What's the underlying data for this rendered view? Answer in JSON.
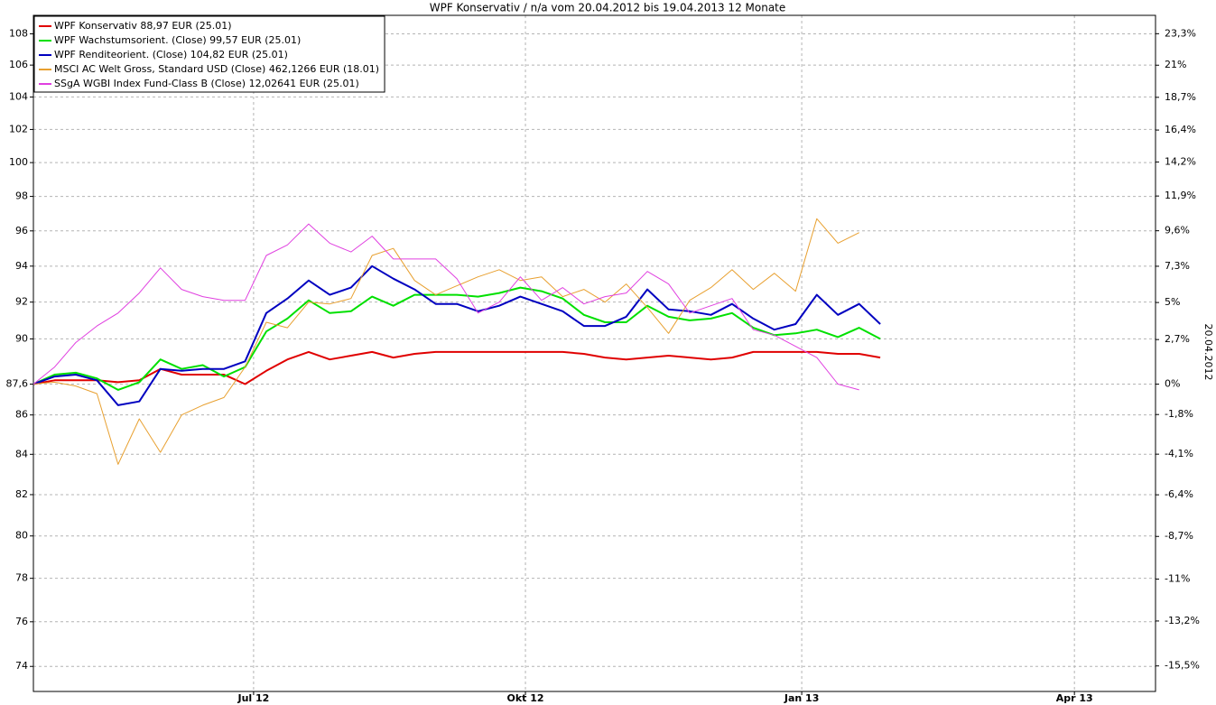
{
  "chart_data": {
    "type": "line",
    "title": "WPF Konservativ / n/a vom 20.04.2012 bis 19.04.2013 12 Monate",
    "y2label": "20.04.2012",
    "x": [
      0,
      1,
      2,
      3,
      4,
      5,
      6,
      7,
      8,
      9,
      10,
      11,
      12,
      13,
      14,
      15,
      16,
      17,
      18,
      19,
      20,
      21,
      22,
      23,
      24,
      25,
      26,
      27,
      28,
      29,
      30,
      31,
      32,
      33,
      34,
      35,
      36,
      37,
      38,
      39,
      40
    ],
    "xlim": [
      0,
      53.0
    ],
    "xticks": [
      {
        "value": 10.4,
        "label": "Jul 12"
      },
      {
        "value": 23.24,
        "label": "Okt 12"
      },
      {
        "value": 36.29,
        "label": "Jan 13"
      },
      {
        "value": 49.17,
        "label": "Apr 13"
      }
    ],
    "ylim": [
      72.9,
      109.2
    ],
    "yscale": "log",
    "yticks": [
      74,
      76,
      78,
      80,
      82,
      84,
      86,
      {
        "value": 87.6,
        "label": "87,6"
      },
      90,
      92,
      94,
      96,
      98,
      100,
      102,
      104,
      106,
      108
    ],
    "y2lim": [
      -16.78,
      24.66
    ],
    "y2scale": "log",
    "y2ticks": [
      {
        "value": 23.3,
        "label": "23,3%"
      },
      {
        "value": 21,
        "label": "21%"
      },
      {
        "value": 18.7,
        "label": "18,7%"
      },
      {
        "value": 16.4,
        "label": "16,4%"
      },
      {
        "value": 14.2,
        "label": "14,2%"
      },
      {
        "value": 11.9,
        "label": "11,9%"
      },
      {
        "value": 9.6,
        "label": "9,6%"
      },
      {
        "value": 7.3,
        "label": "7,3%"
      },
      {
        "value": 5,
        "label": "5%"
      },
      {
        "value": 2.7,
        "label": "2,7%"
      },
      {
        "value": 0,
        "label": "0%"
      },
      {
        "value": -1.8,
        "label": "-1,8%"
      },
      {
        "value": -4.1,
        "label": "-4,1%"
      },
      {
        "value": -6.4,
        "label": "-6,4%"
      },
      {
        "value": -8.7,
        "label": "-8,7%"
      },
      {
        "value": -11,
        "label": "-11%"
      },
      {
        "value": -13.2,
        "label": "-13,2%"
      },
      {
        "value": -15.5,
        "label": "-15,5%"
      }
    ],
    "grid": true,
    "legend": "upper left",
    "series": [
      {
        "name": "WPF Konservativ 88,97 EUR (25.01)",
        "color": "#e00000",
        "width": 2,
        "values": [
          87.6,
          87.8,
          87.8,
          87.8,
          87.7,
          87.8,
          88.4,
          88.1,
          88.1,
          88.1,
          87.6,
          88.3,
          88.9,
          89.3,
          88.9,
          89.1,
          89.3,
          89.0,
          89.2,
          89.3,
          89.3,
          89.3,
          89.3,
          89.3,
          89.3,
          89.3,
          89.2,
          89.0,
          88.9,
          89.0,
          89.1,
          89.0,
          88.9,
          89.0,
          89.3,
          89.3,
          89.3,
          89.3,
          89.2,
          89.2,
          89.0
        ]
      },
      {
        "name": "WPF Wachstumsorient. (Close) 99,57 EUR (25.01)",
        "color": "#00e000",
        "width": 2,
        "values": [
          87.6,
          88.1,
          88.2,
          87.9,
          87.3,
          87.7,
          88.9,
          88.4,
          88.6,
          88.0,
          88.5,
          90.4,
          91.1,
          92.1,
          91.4,
          91.5,
          92.3,
          91.8,
          92.4,
          92.4,
          92.4,
          92.3,
          92.5,
          92.8,
          92.6,
          92.2,
          91.3,
          90.9,
          90.9,
          91.8,
          91.2,
          91.0,
          91.1,
          91.4,
          90.6,
          90.2,
          90.3,
          90.5,
          90.1,
          90.6,
          90.0
        ]
      },
      {
        "name": "WPF Renditeorient. (Close) 104,82 EUR (25.01)",
        "color": "#0000c0",
        "width": 2,
        "values": [
          87.6,
          88.0,
          88.1,
          87.8,
          86.5,
          86.7,
          88.4,
          88.3,
          88.4,
          88.4,
          88.8,
          91.4,
          92.2,
          93.2,
          92.4,
          92.8,
          94.0,
          93.3,
          92.7,
          91.9,
          91.9,
          91.5,
          91.8,
          92.3,
          91.9,
          91.5,
          90.7,
          90.7,
          91.2,
          92.7,
          91.6,
          91.5,
          91.3,
          91.9,
          91.1,
          90.5,
          90.8,
          92.4,
          91.3,
          91.9,
          90.8
        ]
      },
      {
        "name": "MSCI AC Welt Gross, Standard USD (Close) 462,1266 EUR (18.01)",
        "color": "#e8a030",
        "width": 1,
        "values": [
          87.6,
          87.7,
          87.5,
          87.1,
          83.5,
          85.8,
          84.1,
          86.0,
          86.5,
          86.9,
          88.5,
          90.9,
          90.6,
          92.0,
          91.9,
          92.2,
          94.6,
          95.0,
          93.2,
          92.4,
          92.9,
          93.4,
          93.8,
          93.2,
          93.4,
          92.3,
          92.7,
          92.0,
          93.0,
          91.7,
          90.3,
          92.1,
          92.8,
          93.8,
          92.7,
          93.6,
          92.6,
          96.7,
          95.3,
          95.9,
          null
        ]
      },
      {
        "name": "SSgA WGBI Index Fund-Class B (Close) 12,02641 EUR (25.01)",
        "color": "#e040e0",
        "width": 1,
        "values": [
          87.6,
          88.5,
          89.8,
          90.7,
          91.4,
          92.5,
          93.9,
          92.7,
          92.3,
          92.1,
          92.1,
          94.6,
          95.2,
          96.4,
          95.3,
          94.8,
          95.7,
          94.4,
          94.4,
          94.4,
          93.3,
          91.4,
          92.0,
          93.4,
          92.1,
          92.8,
          91.9,
          92.3,
          92.5,
          93.7,
          93.0,
          91.4,
          91.8,
          92.2,
          90.5,
          90.2,
          89.6,
          89.0,
          87.6,
          87.3,
          null
        ]
      }
    ]
  }
}
